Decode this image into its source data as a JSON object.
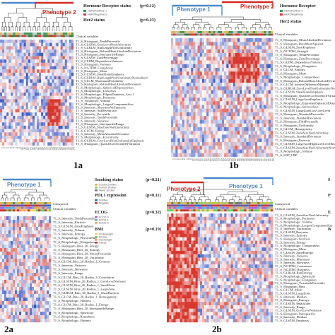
{
  "panels": {
    "p1a": {
      "label": "1a",
      "phenotypes": [
        "Phenotype 2"
      ],
      "stats": [
        {
          "name": "Hormone Receptor status",
          "p": "(p=0.12)"
        },
        {
          "name": "Her2 status",
          "p": "(p=0.23)"
        }
      ],
      "legend_items": [
        "HER2Positive(+)",
        "HER2Negative(-)"
      ],
      "clinical_label": "Clinical variables",
      "features": [
        "T1_S_Histogram_TenthPercentile",
        "T1_S_GLSZM_GreyLevelNonUniformity",
        "T1_S_GLRLM_RunLengthNonUniformity",
        "T1_S_Histogram_RobustMeanAbsoluteDeviation",
        "T1_S_Histogram_InterquartileRange",
        "T1_S_GLSZM_ZonePercentage",
        "T1_S_GLDM_DependenceVariance",
        "T1_S_Histogram_Variance",
        "T1_S_NGTDM_Complexity",
        "T1_S_Histogram_Mean",
        "T1_S_GLSZM_SmallZoneEmphasis",
        "T1_S_GLRLM_RunLengthNonUniformityNormalized",
        "T1_S_GLCM_MaximumProbability",
        "T1_S_Histogram_RobustMeanAbsoluteDeviation",
        "T1_S_Morphologic_SphericalDisproportion",
        "T1_S_Morphologic_LeastAxis",
        "T1_S_Morphologic_EllipseDiameter_Axis 1",
        "T1_S_Morphologic_Perimeter",
        "T1_S_Volumetric_Volume",
        "T1_S_Morphologic_LargestComponentSize",
        "T1_S_Intensity_SkewnessVarIntensity",
        "T1_S_Intensity_StdDevSurface",
        "T1_S_Intensity_Percentile",
        "T1_S_Intensity_TenthPercentile",
        "T1_S_Intensity_Variance",
        "T1_S_Histogram_InterquartileRange",
        "T1_S_GLSZM_SizeZoneNonUniformity",
        "T1_S_GLCM_Energy",
        "T1_S_Intensity_MeanAbsoluteDeviation",
        "T1_S_Morphologic_Eccentricity",
        "T1_S_GLRLM_GreyLevelNonUniformityEmphasis",
        "T1_S_Histogram_QuartileCoefficientOfVariation"
      ]
    },
    "p1b": {
      "label": "1b",
      "phenotypes": [
        "Phenotype 1",
        "Phenotype 2"
      ],
      "stats": [
        {
          "name": "Hormone Receptor",
          "p": ""
        },
        {
          "name": "Her2 status",
          "p": ""
        }
      ],
      "legend_items": [
        "HER2Positive(+)",
        "HER2Negative(-)"
      ],
      "clinical_label": "Clinical variables",
      "features": [
        "T1_S_Histogram_MeanAbsoluteDeviation",
        "T1_S_Histogram_RootMeanSquared",
        "T1_S_GLSZM_ZoneEmphasis",
        "T1_S_NGTDM_Strength",
        "T1_S_Histogram_TenthPercentile",
        "T1_S_Histogram_ZonePercentage",
        "T1_S_GLDM_DependenceVariance",
        "T1_S_Morphologic_Elongation",
        "T1_S_GLCM_Entropy",
        "T1_S_Histogram_Mean",
        "T1_S_Morphologic_Compactness",
        "T1_S_Histogram_RobustMeanAbsoluteDeviation",
        "T1_S_GLCM_InverseDifferenceMoment",
        "T1_S_GLRLM_GreyLevelNonUniformityNormalized",
        "T1_S_GLSZM_SmallZoneEmphasis",
        "T1_S_Histogram_QuartileCoefficientOfVariation",
        "T1_S_GLSZM_LargeAreaEmphasis",
        "T1_S_Morphologic_EquivalentSphericalDiameter",
        "T1_S_Morphologic_SurfaceArea",
        "T1_S_GLSZM_LargeZoneLowGreyLevel",
        "T1_S_Histogram_NinetiethPercentile",
        "T1_S_Intensity_StandardDeviation",
        "T1_S_Histogram_FifthPercentile",
        "T1_S_Histogram_Uniformity",
        "T1_S_GLCM_Homogeneity",
        "T1_S_GLSZM_ZoneSizeNonUniformity",
        "T1_S_Intensity_StandardDeviation",
        "T1_S_Histogram_Kurtosis",
        "T1_S_GLSZM_LargeAreaHighGreyLevelEmphasis",
        "T1_S_GLSZM_ZoneSizeNonUniformityNormalized",
        "T1_S_Morphologic_Volume",
        "T1_S_LBP_LBP"
      ]
    },
    "p2a": {
      "label": "2a",
      "phenotypes": [
        "Phenotype 1"
      ],
      "stats": [
        {
          "name": "Smoking status",
          "p": "(p=0.21)"
        },
        {
          "name": "PDL1 expression",
          "p": "(p=0.11)"
        },
        {
          "name": "ECOG",
          "p": "(p=0.32)"
        },
        {
          "name": "BMI",
          "p": "(p=0.19)"
        }
      ],
      "legend_items": [
        "Current smoker",
        "Former smoker",
        "Never smoker",
        "Positive",
        "Negative",
        "ECOG 0",
        "ECOG 1",
        "ECOG 2",
        "Underweight",
        "Normal",
        "Overweight",
        "Obese"
      ],
      "clinical_label": "Clinical variables",
      "categorical_label": "Categorical",
      "features": [
        "T1_S_Intensity_TenthPercentile",
        "T1_S_Intensity_Kurtosis",
        "T1_S_GLSZM_ZoneEmphasis",
        "T1_S_Intensity_Volume",
        "T1_S_Intensity_Entropy",
        "T1_S_Morphologic_PhysicalSize",
        "T1_S_Morphologic_Elongation",
        "T1_S_Histogram_Bins_20_Energy",
        "T1_S_Histogram_Bins_20_Entropy",
        "T1_S_Histogram_Bins_20_NinetyPercentile",
        "T1_S_Histogram_Bins_20_Uniformity",
        "T1_S_GLCM_Bins_20_Radius_1_Contrast",
        "T1_S_Intensity_Variance",
        "T1_S_Intensity_Skewness",
        "T1_S_Intensity_Range",
        "T1_S_GLCM_Bins_20_Radius_1_Correlation",
        "T1_S_GLSZM_Bins_20_Radius_1_GreyLevelVariance",
        "T1_S_GLSZM_Bins_20_Radius_1_SmallZone",
        "T1_S_GLSZM_Bins_20_Radius_1_LargeZone",
        "T1_S_GLRLM_Bins_20_Radius_1_ShortRunLow",
        "T1_S_GLCM_Bins_20_Radius_1_Homogeneity",
        "T1_S_Morphologic_Flatness",
        "T1_S_GLCM_Bins_20_Radius_1_Energy",
        "T1_S_Histogram_Bins_20_InterquartileRange",
        "T1_S_Morphologic_Sphericity",
        "T1_S_Morphologic_Roundness",
        "T1_S_Morphologic_Flatness"
      ]
    },
    "p2b": {
      "label": "2b",
      "phenotypes": [
        "Phenotype 2",
        "Phenotype 1"
      ],
      "stats": [
        {
          "name": "S",
          "p": ""
        },
        {
          "name": "P",
          "p": ""
        },
        {
          "name": "E",
          "p": ""
        },
        {
          "name": "B",
          "p": ""
        }
      ],
      "legend_items": [],
      "clinical_label": "Clinical variables",
      "categorical_label": "Categorical",
      "features": [
        "T1_S_GLSZM_ZoneSizeNonUniformity",
        "T1_S_Morphologic_Perimeter",
        "T1_S_Morphologic_Volume",
        "T1_S_Morphologic_LargestComponentSize",
        "T1_S_Intensity_Uniformity",
        "T1_S_GLSZM_Busyness",
        "T1_S_Intensity_Entropy",
        "T1_S_Histogram_Kurtosis",
        "T1_S_Intensity_Energy",
        "T1_S_Morphologic_Compactness",
        "T1_S_Histogram_Mean",
        "T1_S_GLSZM_ZoneEntropy",
        "T1_S_Intensity_Variance",
        "T1_S_Intensity_Minimum",
        "T1_S_Intensity_Skewness",
        "T1_S_NGTDM_Coarseness",
        "T1_S_NGTDM_Busyness",
        "T1_S_GLRLM_RunEntropy",
        "T1_S_Morphologic_Sphericity",
        "T1_S_Morphologic_Elongation",
        "T1_S_Histogram_TwentiethPercentile",
        "T1_S_Histogram_Bins",
        "T1_S_GLCM_Mode",
        "T1_S_GLSZM_LargeZone",
        "T1_S_Intensity_Median",
        "T1_S_Histogram_Entropy",
        "T1_S_GLSZM_SmallZone",
        "T1_S_Intensity_Range",
        "T1_S_GLSZM_GreyLevelVariance",
        "T1_S_Histogram_Interquartile",
        "T1_S_Intensity_Median",
        "T1_S_GLSZM_Emphasis"
      ]
    }
  }
}
